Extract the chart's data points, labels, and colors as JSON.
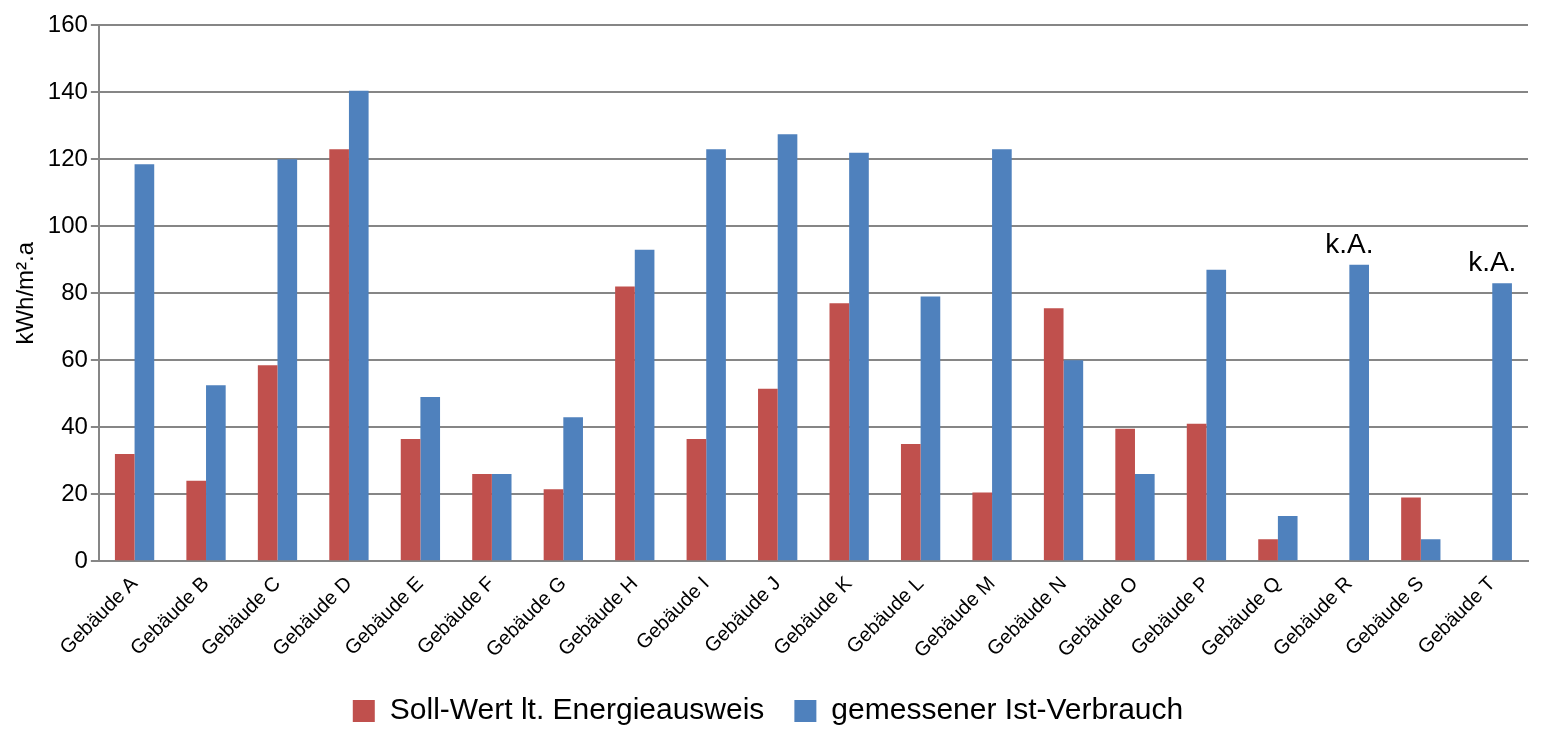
{
  "chart_data": {
    "type": "bar",
    "ylabel": "kWh/m².a",
    "categories": [
      "Gebäude A",
      "Gebäude B",
      "Gebäude C",
      "Gebäude D",
      "Gebäude E",
      "Gebäude F",
      "Gebäude G",
      "Gebäude H",
      "Gebäude I",
      "Gebäude J",
      "Gebäude K",
      "Gebäude L",
      "Gebäude M",
      "Gebäude N",
      "Gebäude O",
      "Gebäude P",
      "Gebäude Q",
      "Gebäude R",
      "Gebäude S",
      "Gebäude T"
    ],
    "series": [
      {
        "name": "Soll-Wert lt. Energieausweis",
        "color": "#c0504d",
        "values": [
          32,
          24,
          58.5,
          123,
          36.5,
          26,
          21.5,
          82,
          36.5,
          51.5,
          77,
          35,
          20.5,
          75.5,
          39.5,
          41,
          6.5,
          null,
          19,
          null
        ]
      },
      {
        "name": "gemessener Ist-Verbrauch",
        "color": "#4f81bd",
        "values": [
          118.5,
          52.5,
          120,
          140.5,
          49,
          26,
          43,
          93,
          123,
          127.5,
          122,
          79,
          123,
          60,
          26,
          87,
          13.5,
          88.5,
          6.5,
          83
        ]
      }
    ],
    "ylim": [
      0,
      160
    ],
    "yticks": [
      0,
      20,
      40,
      60,
      80,
      100,
      120,
      140,
      160
    ],
    "grid": "y",
    "legend": "bottom",
    "annotations": [
      "k.A.",
      "k.A."
    ]
  }
}
